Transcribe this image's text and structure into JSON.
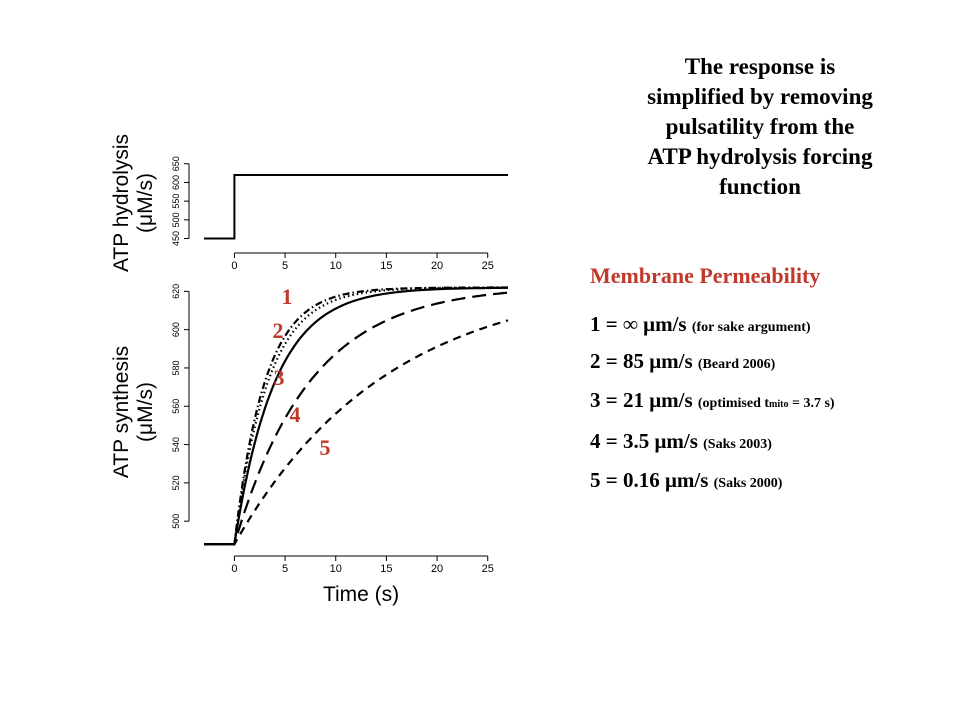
{
  "title_lines": [
    "The response is",
    "simplified by removing",
    "pulsatility from the",
    "ATP hydrolysis forcing",
    "function"
  ],
  "legend": {
    "heading": "Membrane Permeability",
    "rows": [
      {
        "main": "1 = ∞ μm/s",
        "note": "(for sake argument)"
      },
      {
        "main": "2 = 85 μm/s",
        "note": "(Beard 2006)"
      },
      {
        "main": "3 = 21 μm/s",
        "note_pre": "(optimised t",
        "note_sub": "mito",
        "note_post": " = 3.7 s)"
      },
      {
        "main": "4 = 3.5 μm/s",
        "note": "(Saks 2003)"
      },
      {
        "main": "5 = 0.16  μm/s",
        "note": "(Saks 2000)"
      }
    ]
  },
  "colors": {
    "accent": "#c0392b",
    "heading": "#c0392b",
    "line": "#000000"
  },
  "chart_data": [
    {
      "type": "line",
      "title": "",
      "ylabel": "ATP hydrolysis (μM/s)",
      "xlabel": "",
      "xlim": [
        -3,
        27
      ],
      "ylim": [
        430,
        660
      ],
      "xticks": [
        0,
        5,
        10,
        15,
        20,
        25
      ],
      "yticks": [
        450,
        500,
        550,
        600,
        650
      ],
      "series": [
        {
          "x": [
            -3,
            0,
            0,
            27
          ],
          "y": [
            450,
            450,
            620,
            620
          ]
        }
      ]
    },
    {
      "type": "line",
      "title": "",
      "ylabel": "ATP synthesis (μM/s)",
      "xlabel": "Time (s)",
      "xlim": [
        -3,
        27
      ],
      "ylim": [
        486,
        628
      ],
      "xticks": [
        0,
        5,
        10,
        15,
        20,
        25
      ],
      "yticks": [
        500,
        520,
        540,
        560,
        580,
        600,
        620
      ],
      "series_labels": [
        "1",
        "2",
        "3",
        "4",
        "5"
      ],
      "series": [
        {
          "style": "dashdot",
          "y0": 488,
          "yinf": 622,
          "tau": 3.0
        },
        {
          "style": "dotted",
          "y0": 488,
          "yinf": 622,
          "tau": 3.3
        },
        {
          "style": "solid",
          "y0": 488,
          "yinf": 622,
          "tau": 4.0
        },
        {
          "style": "longdash",
          "y0": 488,
          "yinf": 623,
          "tau": 7.5
        },
        {
          "style": "shortdash",
          "y0": 488,
          "yinf": 628,
          "tau": 15.0
        }
      ]
    }
  ]
}
